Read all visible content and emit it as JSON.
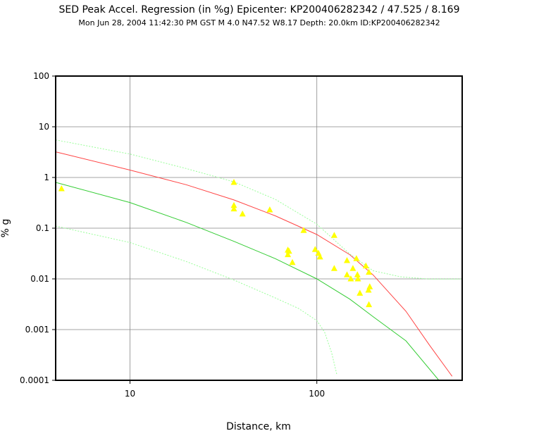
{
  "chart_data": {
    "type": "scatter",
    "title": "SED Peak Accel. Regression (in %g) Epicenter: KP200406282342 / 47.525 / 8.169",
    "subtitle": "Mon Jun 28, 2004 11:42:30 PM GST   M 4.0    N47.52 W8.17    Depth: 20.0km    ID:KP200406282342",
    "xlabel": "Distance, km",
    "ylabel": "% g",
    "x_scale": "log",
    "y_scale": "log",
    "xlim": [
      4,
      600
    ],
    "ylim": [
      0.0001,
      100
    ],
    "grid": true,
    "x_ticks": [
      {
        "value": 10,
        "label": "10"
      },
      {
        "value": 100,
        "label": "100"
      }
    ],
    "y_ticks": [
      {
        "value": 100,
        "label": "100"
      },
      {
        "value": 10,
        "label": "10"
      },
      {
        "value": 1,
        "label": "1"
      },
      {
        "value": 0.1,
        "label": "0.1"
      },
      {
        "value": 0.01,
        "label": "0.01"
      },
      {
        "value": 0.001,
        "label": "0.001"
      },
      {
        "value": 0.0001,
        "label": "0.0001"
      }
    ],
    "points": [
      {
        "x": 4.3,
        "y": 0.6
      },
      {
        "x": 36,
        "y": 0.8
      },
      {
        "x": 36,
        "y": 0.28
      },
      {
        "x": 36,
        "y": 0.24
      },
      {
        "x": 40,
        "y": 0.19
      },
      {
        "x": 56,
        "y": 0.23
      },
      {
        "x": 70,
        "y": 0.037
      },
      {
        "x": 71,
        "y": 0.035
      },
      {
        "x": 70,
        "y": 0.03
      },
      {
        "x": 74,
        "y": 0.021
      },
      {
        "x": 85,
        "y": 0.09
      },
      {
        "x": 98,
        "y": 0.038
      },
      {
        "x": 102,
        "y": 0.032
      },
      {
        "x": 104,
        "y": 0.027
      },
      {
        "x": 124,
        "y": 0.072
      },
      {
        "x": 124,
        "y": 0.016
      },
      {
        "x": 145,
        "y": 0.023
      },
      {
        "x": 145,
        "y": 0.012
      },
      {
        "x": 152,
        "y": 0.01
      },
      {
        "x": 156,
        "y": 0.016
      },
      {
        "x": 163,
        "y": 0.025
      },
      {
        "x": 165,
        "y": 0.012
      },
      {
        "x": 166,
        "y": 0.01
      },
      {
        "x": 170,
        "y": 0.0052
      },
      {
        "x": 183,
        "y": 0.018
      },
      {
        "x": 190,
        "y": 0.0135
      },
      {
        "x": 189,
        "y": 0.006
      },
      {
        "x": 192,
        "y": 0.007
      },
      {
        "x": 190,
        "y": 0.0031
      }
    ],
    "curves": [
      {
        "role": "regression",
        "color": "#ff4444",
        "dashed": false,
        "points": [
          [
            4,
            3.2
          ],
          [
            10,
            1.4
          ],
          [
            20,
            0.72
          ],
          [
            36,
            0.36
          ],
          [
            60,
            0.175
          ],
          [
            100,
            0.075
          ],
          [
            150,
            0.03
          ],
          [
            200,
            0.012
          ],
          [
            300,
            0.0023
          ],
          [
            400,
            0.0005
          ],
          [
            530,
            0.00012
          ]
        ]
      },
      {
        "role": "regression-upper",
        "color": "#99ff99",
        "dashed": true,
        "points": [
          [
            4,
            5.5
          ],
          [
            10,
            2.9
          ],
          [
            20,
            1.5
          ],
          [
            36,
            0.82
          ],
          [
            60,
            0.37
          ],
          [
            100,
            0.12
          ],
          [
            150,
            0.031
          ],
          [
            200,
            0.0145
          ],
          [
            280,
            0.011
          ],
          [
            400,
            0.0099
          ],
          [
            600,
            0.0099
          ]
        ]
      },
      {
        "role": "regression-lower",
        "color": "#99ff99",
        "dashed": true,
        "points": [
          [
            4,
            0.11
          ],
          [
            10,
            0.052
          ],
          [
            20,
            0.022
          ],
          [
            36,
            0.0095
          ],
          [
            60,
            0.0042
          ],
          [
            80,
            0.0026
          ],
          [
            100,
            0.0015
          ],
          [
            110,
            0.0009
          ],
          [
            120,
            0.00035
          ],
          [
            128,
            0.00013
          ]
        ]
      },
      {
        "role": "attenuation",
        "color": "#33cc33",
        "dashed": false,
        "points": [
          [
            4,
            0.8
          ],
          [
            10,
            0.32
          ],
          [
            20,
            0.13
          ],
          [
            36,
            0.055
          ],
          [
            60,
            0.025
          ],
          [
            100,
            0.01
          ],
          [
            150,
            0.004
          ],
          [
            200,
            0.0018
          ],
          [
            300,
            0.0006
          ],
          [
            450,
            0.0001
          ]
        ]
      }
    ]
  }
}
